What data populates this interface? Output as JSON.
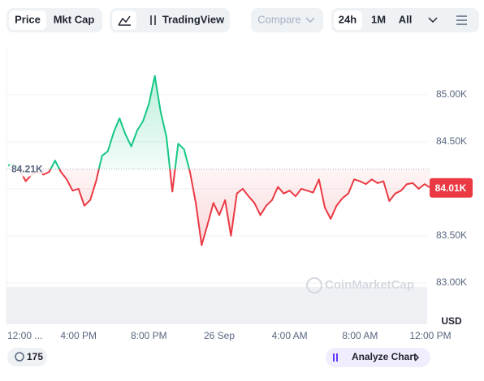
{
  "ui": {
    "tabs": [
      "Price",
      "Mkt Cap"
    ],
    "tradingview": "TradingView",
    "compare": "Compare",
    "ranges": [
      "24h",
      "1M",
      "All"
    ],
    "currency": "USD",
    "watermark": "CoinMarketCap",
    "badge": "175",
    "analyze": "Analyze Chart"
  },
  "chart_data": {
    "type": "line",
    "categories": [
      "12:00 ...",
      null,
      null,
      null,
      null,
      null,
      null,
      null,
      null,
      null,
      null,
      null,
      "4:00 PM",
      null,
      null,
      null,
      null,
      null,
      null,
      null,
      null,
      null,
      null,
      null,
      "8:00 PM",
      null,
      null,
      null,
      null,
      null,
      null,
      null,
      null,
      null,
      null,
      null,
      "26 Sep",
      null,
      null,
      null,
      null,
      null,
      null,
      null,
      null,
      null,
      null,
      null,
      "4:00 AM",
      null,
      null,
      null,
      null,
      null,
      null,
      null,
      null,
      null,
      null,
      null,
      "8:00 AM",
      null,
      null,
      null,
      null,
      null,
      null,
      null,
      null,
      null,
      null,
      null,
      "12:00 PM"
    ],
    "values": [
      84250,
      84260,
      84200,
      84080,
      84150,
      84180,
      84150,
      84180,
      84300,
      84180,
      84100,
      83980,
      84000,
      83820,
      83880,
      84080,
      84350,
      84400,
      84600,
      84750,
      84580,
      84450,
      84620,
      84720,
      84900,
      85200,
      84820,
      84550,
      83970,
      84480,
      84420,
      84180,
      83850,
      83400,
      83620,
      83850,
      83720,
      83880,
      83500,
      83950,
      84000,
      83920,
      83850,
      83720,
      83820,
      83880,
      84020,
      83950,
      83980,
      83920,
      84000,
      83980,
      83960,
      84100,
      83800,
      83680,
      83820,
      83900,
      83950,
      84100,
      84080,
      84050,
      84100,
      84060,
      84080,
      83870,
      83950,
      83980,
      84050,
      84060,
      84000,
      84050,
      84010
    ],
    "last_price_label": "84.01K",
    "baseline": {
      "value": 84210,
      "label": "84.21K"
    },
    "color_up": "#16c784",
    "color_down": "#ea3943",
    "ylim": [
      82560,
      85490
    ],
    "yticks": [
      {
        "value": 83000,
        "label": "83.00K"
      },
      {
        "value": 83500,
        "label": "83.50K"
      },
      {
        "value": 84000,
        "label": "84.00K"
      },
      {
        "value": 84500,
        "label": "84.50K"
      },
      {
        "value": 85000,
        "label": "85.00K"
      }
    ],
    "grid": true
  }
}
